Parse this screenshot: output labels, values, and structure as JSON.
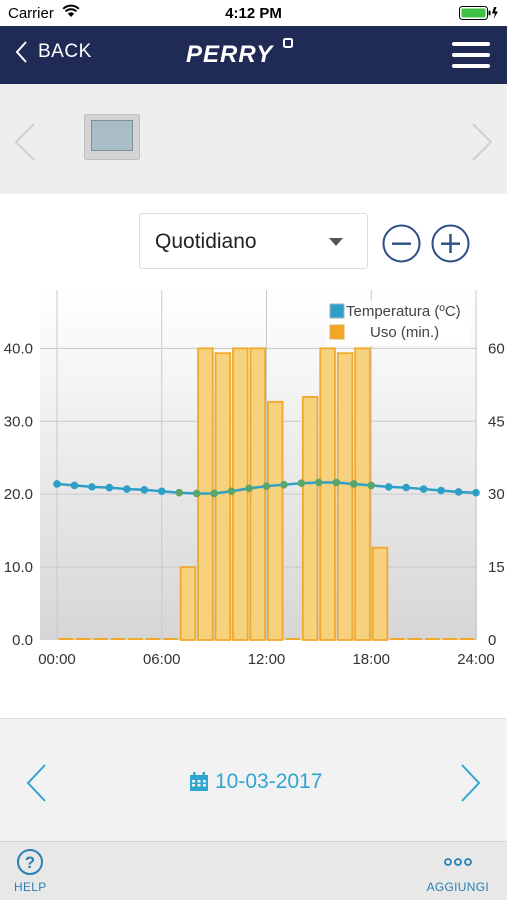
{
  "status_bar": {
    "carrier": "Carrier",
    "time": "4:12 PM"
  },
  "nav": {
    "back_label": "BACK",
    "logo_text": "PERRY"
  },
  "period_select": {
    "selected": "Quotidiano"
  },
  "date_nav": {
    "date": "10-03-2017"
  },
  "tabbar": {
    "help_label": "HELP",
    "add_label": "AGGIUNGI"
  },
  "colors": {
    "navy": "#1f2a55",
    "accent": "#2fa6d0",
    "bar_fill": "#f7d27e",
    "bar_stroke": "#f0a928",
    "temp_line": "#2e9fc7",
    "temp_point_green": "#5aa569"
  },
  "chart_data": {
    "type": "bar",
    "legend": {
      "position": "top-right",
      "entries": [
        "Temperatura (ºC)",
        "Uso (min.)"
      ]
    },
    "x_ticks": [
      "00:00",
      "06:00",
      "12:00",
      "18:00",
      "24:00"
    ],
    "x_range": [
      0,
      24
    ],
    "y_left": {
      "ticks": [
        "0.0",
        "10.0",
        "20.0",
        "30.0",
        "40.0"
      ],
      "range": [
        0,
        48
      ]
    },
    "y_right": {
      "ticks": [
        "0",
        "15",
        "30",
        "45",
        "60"
      ],
      "range": [
        0,
        72
      ]
    },
    "grid": true,
    "series": [
      {
        "name": "Uso (min.)",
        "type": "bar",
        "axis": "right",
        "x": [
          0.5,
          1.5,
          2.5,
          3.5,
          4.5,
          5.5,
          6.5,
          7.5,
          8.5,
          9.5,
          10.5,
          11.5,
          12.5,
          13.5,
          14.5,
          15.5,
          16.5,
          17.5,
          18.5,
          19.5,
          20.5,
          21.5,
          22.5,
          23.5
        ],
        "values": [
          0,
          0,
          0,
          0,
          0,
          0,
          0,
          15,
          60,
          59,
          60,
          60,
          49,
          0,
          50,
          60,
          59,
          60,
          19,
          0,
          0,
          0,
          0,
          0
        ]
      },
      {
        "name": "Temperatura (ºC)",
        "type": "line",
        "axis": "left",
        "x": [
          0,
          1,
          2,
          3,
          4,
          5,
          6,
          7,
          8,
          9,
          10,
          11,
          12,
          13,
          14,
          15,
          16,
          17,
          18,
          19,
          20,
          21,
          22,
          23,
          24
        ],
        "values": [
          21.4,
          21.2,
          21.0,
          20.9,
          20.7,
          20.6,
          20.4,
          20.2,
          20.1,
          20.1,
          20.4,
          20.8,
          21.1,
          21.3,
          21.5,
          21.6,
          21.6,
          21.4,
          21.2,
          21.0,
          20.9,
          20.7,
          20.5,
          20.3,
          20.2
        ]
      }
    ]
  }
}
